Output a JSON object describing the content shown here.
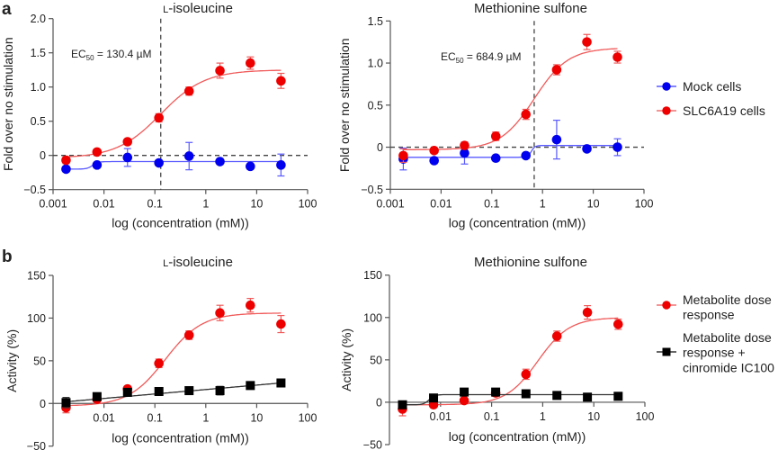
{
  "figure": {
    "panel_labels": [
      "a",
      "b"
    ]
  },
  "chart_data": [
    {
      "id": "a-left",
      "type": "scatter",
      "panel": "a",
      "title": "L-isoleucine",
      "title_prefix": "L",
      "title_rest": "-isoleucine",
      "xlabel": "log (concentration (mM))",
      "ylabel": "Fold over no stimulation",
      "xscale": "log",
      "xlim": [
        0.001,
        100
      ],
      "ylim": [
        -0.5,
        2.0
      ],
      "xticks": [
        0.001,
        0.01,
        0.1,
        1,
        10,
        100
      ],
      "xtick_labels": [
        "0.001",
        "0.01",
        "0.1",
        "1",
        "10",
        "100"
      ],
      "yticks": [
        -0.5,
        0,
        0.5,
        1.0,
        1.5,
        2.0
      ],
      "ytick_labels": [
        "−0.5",
        "0",
        "0.5",
        "1.0",
        "1.5",
        "2.0"
      ],
      "hline_dashed": 0,
      "vline_dashed": 0.1304,
      "annotation": {
        "prefix": "EC",
        "sub": "50",
        "rest": " = 130.4 µM"
      },
      "x": [
        0.0018,
        0.0073,
        0.029,
        0.12,
        0.47,
        1.9,
        7.5,
        30
      ],
      "series": [
        {
          "name": "Mock cells",
          "color": "#0000ee",
          "marker": "circle",
          "values": [
            -0.2,
            -0.14,
            -0.03,
            -0.11,
            -0.01,
            -0.09,
            -0.16,
            -0.14
          ],
          "errors": [
            0.02,
            0.02,
            0.13,
            0.02,
            0.2,
            0.02,
            0.02,
            0.16
          ],
          "fit": {
            "kind": "step",
            "bottom": -0.2,
            "top": -0.09,
            "ec50": 0.006,
            "hill": 8
          }
        },
        {
          "name": "SLC6A19 cells",
          "color": "#ee0000",
          "marker": "circle",
          "values": [
            -0.07,
            0.05,
            0.2,
            0.55,
            0.94,
            1.24,
            1.35,
            1.09
          ],
          "errors": [
            0.05,
            0.03,
            0.03,
            0.06,
            0.06,
            0.11,
            0.09,
            0.11
          ],
          "fit": {
            "kind": "sigmoid",
            "bottom": -0.04,
            "top": 1.25,
            "ec50": 0.1304,
            "hill": 1.0
          }
        }
      ]
    },
    {
      "id": "a-right",
      "type": "scatter",
      "panel": "a",
      "title": "Methionine sulfone",
      "xlabel": "log (concentration (mM))",
      "ylabel": "Fold over no stimulation",
      "xscale": "log",
      "xlim": [
        0.001,
        100
      ],
      "ylim": [
        -0.5,
        1.5
      ],
      "xticks": [
        0.001,
        0.01,
        0.1,
        1,
        10,
        100
      ],
      "xtick_labels": [
        "0.001",
        "0.01",
        "0.1",
        "1",
        "10",
        "100"
      ],
      "yticks": [
        -0.5,
        0,
        0.5,
        1.0,
        1.5
      ],
      "ytick_labels": [
        "−0.5",
        "0",
        "0.5",
        "1.0",
        "1.5"
      ],
      "hline_dashed": 0,
      "vline_dashed": 0.6849,
      "annotation": {
        "prefix": "EC",
        "sub": "50",
        "rest": " = 684.9 µM"
      },
      "x": [
        0.0018,
        0.0073,
        0.029,
        0.12,
        0.47,
        1.9,
        7.5,
        30
      ],
      "series": [
        {
          "name": "Mock cells",
          "color": "#0000ee",
          "marker": "circle",
          "values": [
            -0.14,
            -0.16,
            -0.07,
            -0.13,
            -0.1,
            0.09,
            -0.02,
            0.0
          ],
          "errors": [
            0.13,
            0.02,
            0.13,
            0.03,
            0.02,
            0.23,
            0.03,
            0.1
          ],
          "fit": {
            "kind": "step",
            "bottom": -0.12,
            "top": 0.02,
            "ec50": 0.6,
            "hill": 12
          }
        },
        {
          "name": "SLC6A19 cells",
          "color": "#ee0000",
          "marker": "circle",
          "values": [
            -0.1,
            -0.04,
            0.02,
            0.13,
            0.39,
            0.92,
            1.25,
            1.07
          ],
          "errors": [
            0.08,
            0.02,
            0.04,
            0.05,
            0.06,
            0.06,
            0.09,
            0.07
          ],
          "fit": {
            "kind": "sigmoid",
            "bottom": -0.03,
            "top": 1.18,
            "ec50": 0.6849,
            "hill": 1.3
          }
        }
      ],
      "legend": {
        "placement": "right",
        "entries": [
          "Mock cells",
          "SLC6A19 cells"
        ]
      }
    },
    {
      "id": "b-left",
      "type": "scatter",
      "panel": "b",
      "title": "L-isoleucine",
      "title_prefix": "L",
      "title_rest": "-isoleucine",
      "xlabel": "log (concentration (mM))",
      "ylabel": "Activity (%)",
      "xscale": "log",
      "xlim": [
        0.001,
        100
      ],
      "ylim": [
        -50,
        150
      ],
      "xticks": [
        0.01,
        0.1,
        1,
        10,
        100
      ],
      "xtick_labels": [
        "0.01",
        "0.1",
        "1",
        "10",
        "100"
      ],
      "yticks": [
        -50,
        0,
        50,
        100,
        150
      ],
      "ytick_labels": [
        "−50",
        "0",
        "50",
        "100",
        "150"
      ],
      "x": [
        0.0018,
        0.0073,
        0.029,
        0.12,
        0.47,
        1.9,
        7.5,
        30
      ],
      "series": [
        {
          "name": "Metabolite dose response",
          "color": "#ee0000",
          "marker": "circle",
          "values": [
            -5,
            5,
            17,
            47,
            80,
            106,
            115,
            93
          ],
          "errors": [
            6,
            3,
            3,
            5,
            5,
            9,
            8,
            10
          ],
          "fit": {
            "kind": "sigmoid",
            "bottom": -3,
            "top": 106,
            "ec50": 0.16,
            "hill": 1.2
          }
        },
        {
          "name": "Metabolite dose response + cinromide IC100",
          "color": "#000000",
          "marker": "square",
          "values": [
            1,
            8,
            13,
            14,
            15,
            15,
            21,
            24
          ],
          "errors": [
            6,
            2,
            2,
            2,
            2,
            5,
            2,
            2
          ],
          "fit": {
            "kind": "loglinear",
            "y_at_min": 2,
            "y_at_max": 24
          }
        }
      ]
    },
    {
      "id": "b-right",
      "type": "scatter",
      "panel": "b",
      "title": "Methionine sulfone",
      "xlabel": "log (concentration (mM))",
      "ylabel": "Activity (%)",
      "xscale": "log",
      "xlim": [
        0.001,
        100
      ],
      "ylim": [
        -50,
        150
      ],
      "xticks": [
        0.01,
        0.1,
        1,
        10,
        100
      ],
      "xtick_labels": [
        "0.01",
        "0.1",
        "1",
        "10",
        "100"
      ],
      "yticks": [
        -50,
        0,
        50,
        100,
        150
      ],
      "ytick_labels": [
        "−50",
        "0",
        "50",
        "100",
        "150"
      ],
      "x": [
        0.0018,
        0.0073,
        0.029,
        0.12,
        0.47,
        1.9,
        7.5,
        30
      ],
      "series": [
        {
          "name": "Metabolite dose response",
          "color": "#ee0000",
          "marker": "circle",
          "values": [
            -8,
            -3,
            2,
            11,
            33,
            78,
            106,
            92
          ],
          "errors": [
            8,
            2,
            2,
            4,
            6,
            6,
            8,
            6
          ],
          "fit": {
            "kind": "sigmoid",
            "bottom": -3,
            "top": 100,
            "ec50": 0.8,
            "hill": 1.4
          }
        },
        {
          "name": "Metabolite dose response + cinromide IC100",
          "color": "#000000",
          "marker": "square",
          "values": [
            -3,
            5,
            12,
            12,
            10,
            8,
            6,
            7
          ],
          "errors": [
            3,
            2,
            2,
            2,
            2,
            2,
            2,
            2
          ],
          "fit": {
            "kind": "step",
            "bottom": -3,
            "top": 9,
            "ec50": 0.006,
            "hill": 8
          }
        }
      ],
      "legend": {
        "placement": "right",
        "entries": [
          "Metabolite dose response",
          "Metabolite dose response + cinromide IC100"
        ]
      }
    }
  ],
  "legends": {
    "a": [
      {
        "label": "Mock cells",
        "color": "#0000ee",
        "marker": "circle"
      },
      {
        "label": "SLC6A19 cells",
        "color": "#ee0000",
        "marker": "circle"
      }
    ],
    "b": [
      {
        "lines": [
          "Metabolite dose",
          "response"
        ],
        "color": "#ee0000",
        "marker": "circle"
      },
      {
        "lines": [
          "Metabolite dose",
          "response +",
          "cinromide IC100"
        ],
        "color": "#000000",
        "marker": "square"
      }
    ]
  }
}
